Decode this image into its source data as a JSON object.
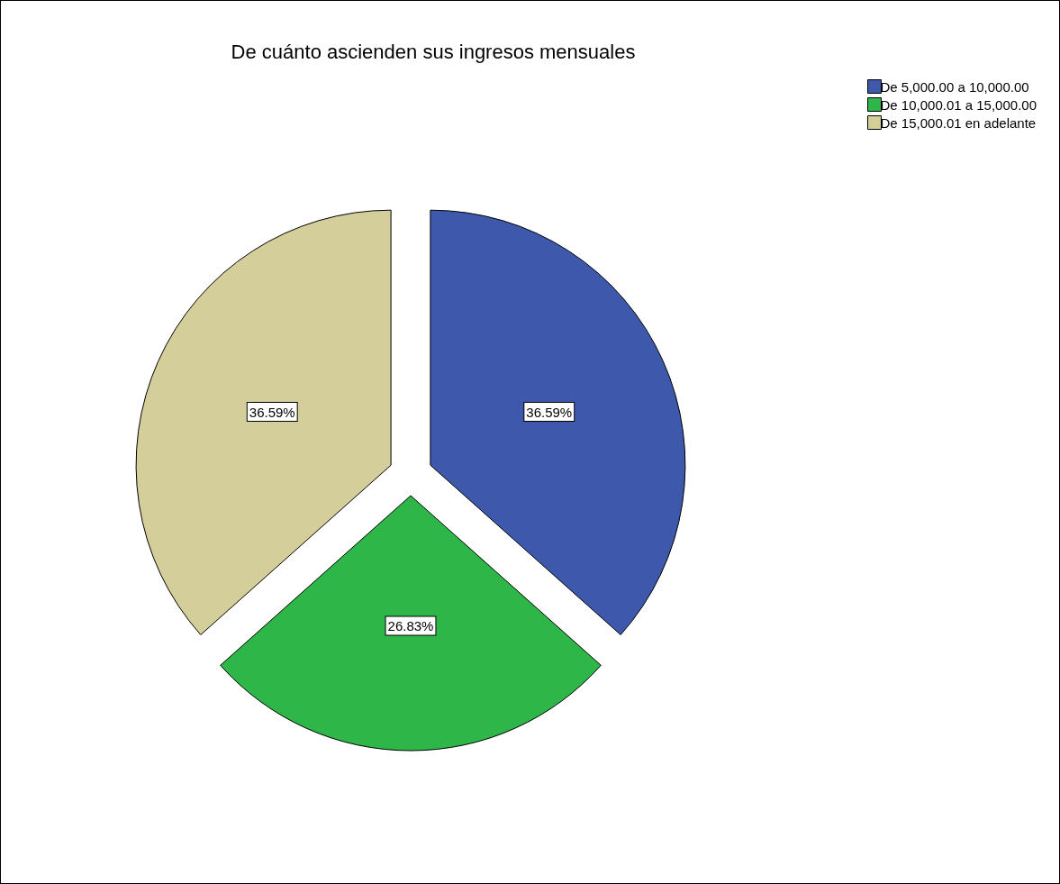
{
  "chart_data": {
    "type": "pie",
    "title": "De cuánto ascienden sus ingresos mensuales",
    "categories": [
      "De 5,000.00 a 10,000.00",
      "De 10,000.01 a 15,000.00",
      "De 15,000.01 en adelante"
    ],
    "values": [
      36.59,
      26.83,
      36.59
    ],
    "value_labels": [
      "36.59%",
      "26.83%",
      "36.59%"
    ],
    "colors": [
      "#3e58ac",
      "#2eb748",
      "#d4ce9a"
    ],
    "legend": "top right"
  }
}
